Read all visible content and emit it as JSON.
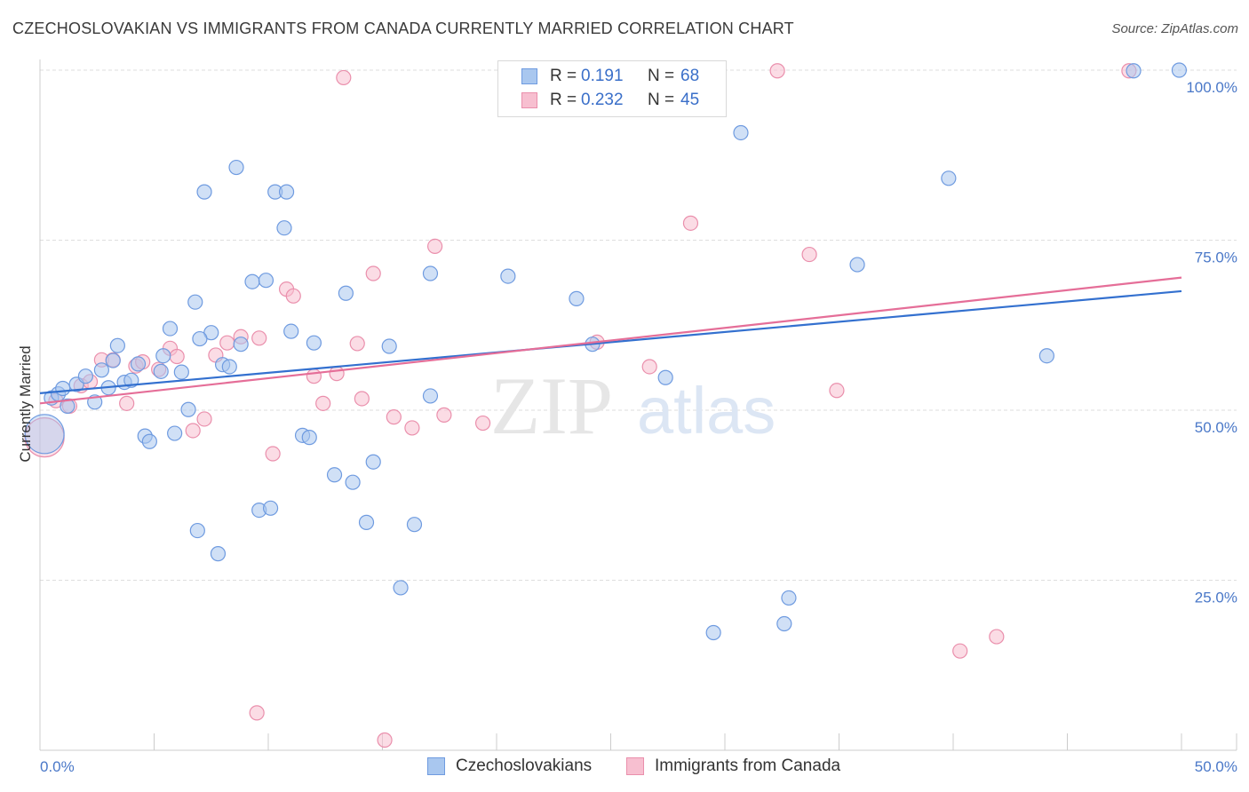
{
  "header": {
    "title": "CZECHOSLOVAKIAN VS IMMIGRANTS FROM CANADA CURRENTLY MARRIED CORRELATION CHART",
    "source": "Source: ZipAtlas.com"
  },
  "watermark": {
    "zip": "ZIP",
    "atlas": "atlas"
  },
  "legend": {
    "rows": [
      {
        "r_label": "R =",
        "r_value": "0.191",
        "n_label": "N =",
        "n_value": "68"
      },
      {
        "r_label": "R =",
        "r_value": "0.232",
        "n_label": "N =",
        "n_value": "45"
      }
    ]
  },
  "bottom_legend": {
    "series1": "Czechoslovakians",
    "series2": "Immigrants from Canada"
  },
  "colors": {
    "blue_fill": "#a9c7ef",
    "blue_stroke": "#6f9be0",
    "blue_line": "#3370cf",
    "pink_fill": "#f7bfd0",
    "pink_stroke": "#ea8fac",
    "pink_line": "#e56e98",
    "tick_text": "#4a78c8",
    "grid": "#dedede"
  },
  "chart_data": {
    "type": "scatter",
    "title": "CZECHOSLOVAKIAN VS IMMIGRANTS FROM CANADA CURRENTLY MARRIED CORRELATION CHART",
    "xlabel": "",
    "ylabel": "Currently Married",
    "xlim": [
      0,
      50
    ],
    "ylim": [
      0,
      100
    ],
    "x_tick_labels": [
      "0.0%",
      "50.0%"
    ],
    "y_tick_labels": [
      "25.0%",
      "50.0%",
      "75.0%",
      "100.0%"
    ],
    "y_ticks": [
      25,
      50,
      75,
      100
    ],
    "grid": true,
    "legend_position": "top-center",
    "series": [
      {
        "name": "Czechoslovakians",
        "r": 0.191,
        "n": 68,
        "trend": [
          [
            0,
            52.5
          ],
          [
            50,
            67.5
          ]
        ],
        "points": [
          [
            0.2,
            46.5
          ],
          [
            0.5,
            51.8
          ],
          [
            0.8,
            52.4
          ],
          [
            1.0,
            53.2
          ],
          [
            1.2,
            50.6
          ],
          [
            1.6,
            53.8
          ],
          [
            2.0,
            55.0
          ],
          [
            2.4,
            51.2
          ],
          [
            2.7,
            55.9
          ],
          [
            3.0,
            53.3
          ],
          [
            3.2,
            57.3
          ],
          [
            3.4,
            59.5
          ],
          [
            3.7,
            54.1
          ],
          [
            4.0,
            54.4
          ],
          [
            4.3,
            56.8
          ],
          [
            4.6,
            46.2
          ],
          [
            4.8,
            45.4
          ],
          [
            5.3,
            55.7
          ],
          [
            5.4,
            58.0
          ],
          [
            5.7,
            62.0
          ],
          [
            5.9,
            46.6
          ],
          [
            6.2,
            55.6
          ],
          [
            6.5,
            50.1
          ],
          [
            6.8,
            65.9
          ],
          [
            6.9,
            32.3
          ],
          [
            7.2,
            82.1
          ],
          [
            7.5,
            61.4
          ],
          [
            7.8,
            28.9
          ],
          [
            8.0,
            56.7
          ],
          [
            8.3,
            56.4
          ],
          [
            8.6,
            85.7
          ],
          [
            8.8,
            59.7
          ],
          [
            9.3,
            68.9
          ],
          [
            9.6,
            35.3
          ],
          [
            9.9,
            69.1
          ],
          [
            10.1,
            35.6
          ],
          [
            10.3,
            82.1
          ],
          [
            10.8,
            82.1
          ],
          [
            10.7,
            76.8
          ],
          [
            11.0,
            61.6
          ],
          [
            11.5,
            46.3
          ],
          [
            12.0,
            59.9
          ],
          [
            12.9,
            40.5
          ],
          [
            13.4,
            67.2
          ],
          [
            13.7,
            39.4
          ],
          [
            14.3,
            33.5
          ],
          [
            14.6,
            42.4
          ],
          [
            15.3,
            59.4
          ],
          [
            15.8,
            23.9
          ],
          [
            16.4,
            33.2
          ],
          [
            17.1,
            70.1
          ],
          [
            17.1,
            52.1
          ],
          [
            20.5,
            69.7
          ],
          [
            23.5,
            66.4
          ],
          [
            25.1,
            99.9
          ],
          [
            27.4,
            54.8
          ],
          [
            29.5,
            17.3
          ],
          [
            30.7,
            90.8
          ],
          [
            32.6,
            18.6
          ],
          [
            32.8,
            22.4
          ],
          [
            35.8,
            71.4
          ],
          [
            39.8,
            84.1
          ],
          [
            44.1,
            58.0
          ],
          [
            47.9,
            99.9
          ],
          [
            49.9,
            100.0
          ],
          [
            24.2,
            59.7
          ],
          [
            7.0,
            60.5
          ],
          [
            11.8,
            46.0
          ]
        ]
      },
      {
        "name": "Immigrants from Canada",
        "r": 0.232,
        "n": 45,
        "trend": [
          [
            0,
            51.0
          ],
          [
            50,
            69.5
          ]
        ],
        "points": [
          [
            0.2,
            46.0
          ],
          [
            0.7,
            51.4
          ],
          [
            1.3,
            50.6
          ],
          [
            1.8,
            53.6
          ],
          [
            2.2,
            54.2
          ],
          [
            2.7,
            57.4
          ],
          [
            3.2,
            57.4
          ],
          [
            3.8,
            51.0
          ],
          [
            4.2,
            56.5
          ],
          [
            4.5,
            57.1
          ],
          [
            5.2,
            56.0
          ],
          [
            5.7,
            59.1
          ],
          [
            6.0,
            57.9
          ],
          [
            6.7,
            47.0
          ],
          [
            7.2,
            48.7
          ],
          [
            7.7,
            58.1
          ],
          [
            8.2,
            59.9
          ],
          [
            8.8,
            60.8
          ],
          [
            9.6,
            60.6
          ],
          [
            10.2,
            43.6
          ],
          [
            10.8,
            67.8
          ],
          [
            11.1,
            66.8
          ],
          [
            12.0,
            55.0
          ],
          [
            12.4,
            51.0
          ],
          [
            13.0,
            55.4
          ],
          [
            13.3,
            98.9
          ],
          [
            14.1,
            51.7
          ],
          [
            14.6,
            70.1
          ],
          [
            15.1,
            1.5
          ],
          [
            15.5,
            49.0
          ],
          [
            16.3,
            47.4
          ],
          [
            17.3,
            74.1
          ],
          [
            17.7,
            49.3
          ],
          [
            19.4,
            48.1
          ],
          [
            24.4,
            60.0
          ],
          [
            26.7,
            56.4
          ],
          [
            28.5,
            77.5
          ],
          [
            32.3,
            99.9
          ],
          [
            33.7,
            72.9
          ],
          [
            34.9,
            52.9
          ],
          [
            40.3,
            14.6
          ],
          [
            41.9,
            16.7
          ],
          [
            47.7,
            99.9
          ],
          [
            9.5,
            5.5
          ],
          [
            13.9,
            59.8
          ]
        ]
      }
    ]
  }
}
